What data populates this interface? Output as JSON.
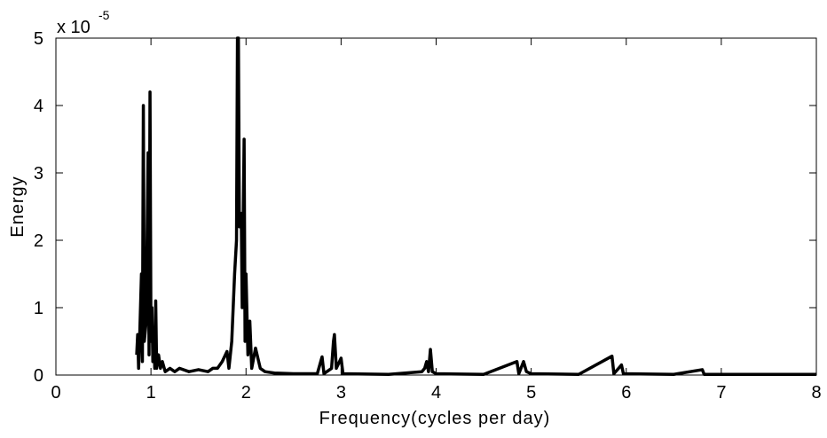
{
  "chart_data": {
    "type": "line",
    "xlabel": "Frequency(cycles per day)",
    "ylabel": "Energy",
    "y_offset_text": {
      "base": "x 10",
      "exponent": "-5"
    },
    "xlim": [
      0,
      8
    ],
    "ylim": [
      0,
      5
    ],
    "xticks": [
      0,
      1,
      2,
      3,
      4,
      5,
      6,
      7,
      8
    ],
    "yticks": [
      0,
      1,
      2,
      3,
      4,
      5
    ],
    "grid": false,
    "color": "#000000",
    "x": [
      0.85,
      0.86,
      0.87,
      0.88,
      0.9,
      0.91,
      0.92,
      0.93,
      0.95,
      0.97,
      0.98,
      0.99,
      1.0,
      1.01,
      1.02,
      1.03,
      1.04,
      1.05,
      1.06,
      1.08,
      1.1,
      1.12,
      1.15,
      1.2,
      1.25,
      1.3,
      1.4,
      1.5,
      1.6,
      1.65,
      1.7,
      1.75,
      1.8,
      1.82,
      1.85,
      1.88,
      1.9,
      1.91,
      1.92,
      1.93,
      1.95,
      1.96,
      1.98,
      1.99,
      2.0,
      2.02,
      2.04,
      2.06,
      2.1,
      2.15,
      2.2,
      2.3,
      2.5,
      2.75,
      2.8,
      2.82,
      2.9,
      2.92,
      2.93,
      2.95,
      3.0,
      3.02,
      3.5,
      3.85,
      3.88,
      3.9,
      3.92,
      3.94,
      3.96,
      4.0,
      4.5,
      4.85,
      4.87,
      4.92,
      4.95,
      5.0,
      5.5,
      5.85,
      5.87,
      5.92,
      5.95,
      5.97,
      6.5,
      6.8,
      6.82,
      8.0
    ],
    "values": [
      0.3,
      0.6,
      0.1,
      0.5,
      1.5,
      0.2,
      4.0,
      0.5,
      0.8,
      3.3,
      0.3,
      4.2,
      0.5,
      1.0,
      0.2,
      0.7,
      0.1,
      1.1,
      0.1,
      0.3,
      0.1,
      0.2,
      0.05,
      0.1,
      0.05,
      0.1,
      0.05,
      0.08,
      0.05,
      0.1,
      0.1,
      0.2,
      0.35,
      0.1,
      0.5,
      1.5,
      2.0,
      5.0,
      5.0,
      2.2,
      2.4,
      1.0,
      3.5,
      0.5,
      1.5,
      0.3,
      0.8,
      0.1,
      0.4,
      0.1,
      0.05,
      0.03,
      0.02,
      0.02,
      0.27,
      0.02,
      0.1,
      0.5,
      0.6,
      0.1,
      0.25,
      0.02,
      0.01,
      0.05,
      0.1,
      0.2,
      0.05,
      0.38,
      0.05,
      0.02,
      0.01,
      0.2,
      0.02,
      0.2,
      0.05,
      0.02,
      0.01,
      0.28,
      0.02,
      0.1,
      0.15,
      0.02,
      0.01,
      0.08,
      0.01,
      0.01
    ]
  }
}
